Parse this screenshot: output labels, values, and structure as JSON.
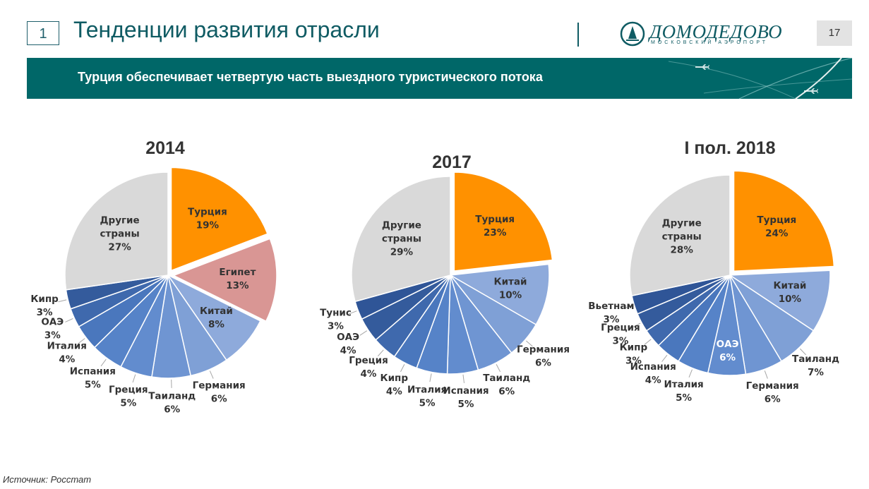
{
  "header": {
    "slide_number": "1",
    "title": "Тенденции развития отрасли",
    "logo_name": "ДОМОДЕДОВО",
    "logo_sub": "МОСКОВСКИЙ АЭРОПОРТ",
    "page_number": "17"
  },
  "banner": {
    "text": "Турция обеспечивает четвертую часть выездного туристического потока"
  },
  "footer": {
    "source": "Источник: Росстат"
  },
  "colors": {
    "orange": "#ff9100",
    "pink": "#d99694",
    "grey": "#d9d9d9",
    "blue_light": "#8eaadb",
    "blue_mid": "#5b8fd3",
    "blue_dark": "#2f5597",
    "teal": "#006768"
  },
  "chart_data": [
    {
      "type": "pie",
      "title": "2014",
      "slices": [
        {
          "label": [
            "Турция"
          ],
          "value": 19,
          "color": "#ff9100"
        },
        {
          "label": [
            "Египет"
          ],
          "value": 13,
          "color": "#d99694"
        },
        {
          "label": [
            "Китай"
          ],
          "value": 8,
          "color": "#8eaadb"
        },
        {
          "label": [
            "Германия"
          ],
          "value": 6,
          "color": "#7fa0d6"
        },
        {
          "label": [
            "Таиланд"
          ],
          "value": 6,
          "color": "#6f95d2"
        },
        {
          "label": [
            "Греция"
          ],
          "value": 5,
          "color": "#628cce"
        },
        {
          "label": [
            "Испания"
          ],
          "value": 5,
          "color": "#5683c8"
        },
        {
          "label": [
            "Италия"
          ],
          "value": 4,
          "color": "#4a77bd"
        },
        {
          "label": [
            "ОАЭ"
          ],
          "value": 3,
          "color": "#3f69ad"
        },
        {
          "label": [
            "Кипр"
          ],
          "value": 3,
          "color": "#345b9c"
        },
        {
          "label": [
            "Другие",
            "страны"
          ],
          "value": 27,
          "color": "#d9d9d9"
        }
      ]
    },
    {
      "type": "pie",
      "title": "2017",
      "slices": [
        {
          "label": [
            "Турция"
          ],
          "value": 23,
          "color": "#ff9100"
        },
        {
          "label": [
            "Китай"
          ],
          "value": 10,
          "color": "#8eaadb"
        },
        {
          "label": [
            "Германия"
          ],
          "value": 6,
          "color": "#7fa0d6"
        },
        {
          "label": [
            "Таиланд"
          ],
          "value": 6,
          "color": "#6f95d2"
        },
        {
          "label": [
            "Испания"
          ],
          "value": 5,
          "color": "#628cce"
        },
        {
          "label": [
            "Италия"
          ],
          "value": 5,
          "color": "#5683c8"
        },
        {
          "label": [
            "Кипр"
          ],
          "value": 4,
          "color": "#4a77bd"
        },
        {
          "label": [
            "Греция"
          ],
          "value": 4,
          "color": "#3f69ad"
        },
        {
          "label": [
            "ОАЭ"
          ],
          "value": 4,
          "color": "#345b9c"
        },
        {
          "label": [
            "Тунис"
          ],
          "value": 3,
          "color": "#2f5597"
        },
        {
          "label": [
            "Другие",
            "страны"
          ],
          "value": 29,
          "color": "#d9d9d9"
        }
      ]
    },
    {
      "type": "pie",
      "title": "I пол. 2018",
      "slices": [
        {
          "label": [
            "Турция"
          ],
          "value": 24,
          "color": "#ff9100"
        },
        {
          "label": [
            "Китай"
          ],
          "value": 10,
          "color": "#8eaadb"
        },
        {
          "label": [
            "Таиланд"
          ],
          "value": 7,
          "color": "#7fa0d6"
        },
        {
          "label": [
            "Германия"
          ],
          "value": 6,
          "color": "#6f95d2"
        },
        {
          "label": [
            "ОАЭ"
          ],
          "value": 6,
          "color": "#628cce"
        },
        {
          "label": [
            "Италия"
          ],
          "value": 5,
          "color": "#5683c8"
        },
        {
          "label": [
            "Испания"
          ],
          "value": 4,
          "color": "#4a77bd"
        },
        {
          "label": [
            "Кипр"
          ],
          "value": 3,
          "color": "#3f69ad"
        },
        {
          "label": [
            "Греция"
          ],
          "value": 3,
          "color": "#345b9c"
        },
        {
          "label": [
            "Вьетнам"
          ],
          "value": 3,
          "color": "#2f5597"
        },
        {
          "label": [
            "Другие",
            "страны"
          ],
          "value": 28,
          "color": "#d9d9d9"
        }
      ]
    }
  ]
}
